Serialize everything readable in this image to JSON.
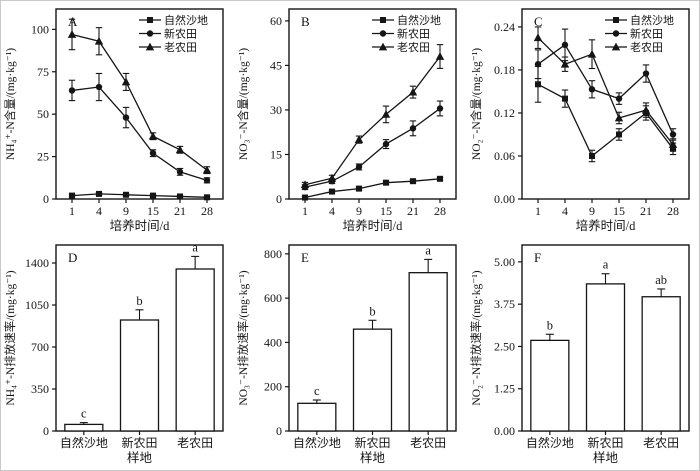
{
  "colors": {
    "ink": "#151515",
    "background": "#ffffff",
    "bar_fill": "#ffffff"
  },
  "figure_title": "",
  "chart_data": [
    {
      "type": "line",
      "panel_label": "A",
      "xlabel": "培养时间/d",
      "ylabel": "NH₄⁺-N含量/(mg·kg⁻¹)",
      "categories": [
        "1",
        "4",
        "9",
        "15",
        "21",
        "28"
      ],
      "ylim": [
        0,
        112
      ],
      "yticks": [
        0,
        25,
        50,
        75,
        100
      ],
      "ytick_labels": [
        "0",
        "25",
        "50",
        "75",
        "100"
      ],
      "legend_position": "top-right",
      "grid": false,
      "series": [
        {
          "name": "自然沙地",
          "marker": "square",
          "values": [
            2,
            3,
            2.5,
            2,
            1.5,
            1
          ],
          "errors": [
            0.8,
            0.8,
            0.8,
            0.8,
            0.5,
            0.5
          ]
        },
        {
          "name": "新农田",
          "marker": "circle",
          "values": [
            64,
            66,
            48,
            27,
            16,
            11
          ],
          "errors": [
            6,
            8,
            6,
            2,
            2,
            1.5
          ]
        },
        {
          "name": "老农田",
          "marker": "triangle",
          "values": [
            97,
            93,
            69,
            37,
            29,
            17
          ],
          "errors": [
            9,
            8,
            5,
            2,
            2,
            2
          ]
        }
      ]
    },
    {
      "type": "line",
      "panel_label": "B",
      "xlabel": "培养时间/d",
      "ylabel": "NO₃⁻-N含量/(mg·kg⁻¹)",
      "categories": [
        "1",
        "4",
        "9",
        "15",
        "21",
        "28"
      ],
      "ylim": [
        0,
        64
      ],
      "yticks": [
        0,
        15,
        30,
        45,
        60
      ],
      "ytick_labels": [
        "0",
        "15",
        "30",
        "45",
        "60"
      ],
      "legend_position": "top-right",
      "grid": false,
      "series": [
        {
          "name": "自然沙地",
          "marker": "square",
          "values": [
            0.5,
            2.5,
            3.5,
            5.5,
            6,
            6.8
          ],
          "errors": [
            0.3,
            0.4,
            0.5,
            0.6,
            0.5,
            0.5
          ]
        },
        {
          "name": "新农田",
          "marker": "circle",
          "values": [
            4,
            6,
            10.8,
            18.5,
            23.8,
            30.5
          ],
          "errors": [
            0.8,
            0.8,
            1,
            1.5,
            2.5,
            2.5
          ]
        },
        {
          "name": "老农田",
          "marker": "triangle",
          "values": [
            4.8,
            7,
            20,
            28.5,
            36,
            48
          ],
          "errors": [
            0.8,
            1,
            1.2,
            2.8,
            2,
            4
          ]
        }
      ]
    },
    {
      "type": "line",
      "panel_label": "C",
      "xlabel": "培养时间/d",
      "ylabel": "NO₂⁻-N含量/(mg·kg⁻¹)",
      "categories": [
        "1",
        "4",
        "9",
        "15",
        "21",
        "28"
      ],
      "ylim": [
        0,
        0.265
      ],
      "yticks": [
        0,
        0.06,
        0.12,
        0.18,
        0.24
      ],
      "ytick_labels": [
        "0.00",
        "0.06",
        "0.12",
        "0.18",
        "0.24"
      ],
      "legend_position": "top-right",
      "grid": false,
      "series": [
        {
          "name": "自然沙地",
          "marker": "square",
          "values": [
            0.16,
            0.14,
            0.06,
            0.09,
            0.12,
            0.07
          ],
          "errors": [
            0.025,
            0.012,
            0.008,
            0.008,
            0.01,
            0.008
          ]
        },
        {
          "name": "新农田",
          "marker": "circle",
          "values": [
            0.188,
            0.215,
            0.153,
            0.14,
            0.175,
            0.09
          ],
          "errors": [
            0.02,
            0.022,
            0.012,
            0.008,
            0.012,
            0.008
          ]
        },
        {
          "name": "老农田",
          "marker": "triangle",
          "values": [
            0.225,
            0.188,
            0.202,
            0.113,
            0.124,
            0.076
          ],
          "errors": [
            0.015,
            0.01,
            0.02,
            0.008,
            0.01,
            0.008
          ]
        }
      ]
    },
    {
      "type": "bar",
      "panel_label": "D",
      "xlabel": "样地",
      "ylabel": "NH₄⁺-N排放速率/(mg·kg⁻¹)",
      "categories": [
        "自然沙地",
        "新农田",
        "老农田"
      ],
      "values": [
        55,
        925,
        1350
      ],
      "errors": [
        15,
        85,
        105
      ],
      "letters": [
        "c",
        "b",
        "a"
      ],
      "ylim": [
        0,
        1550
      ],
      "yticks": [
        0,
        350,
        700,
        1050,
        1400
      ],
      "ytick_labels": [
        "0",
        "350",
        "700",
        "1050",
        "1400"
      ],
      "grid": false
    },
    {
      "type": "bar",
      "panel_label": "E",
      "xlabel": "样地",
      "ylabel": "NO₃⁻-N排放速率/(mg·kg⁻¹)",
      "categories": [
        "自然沙地",
        "新农田",
        "老农田"
      ],
      "values": [
        125,
        460,
        715
      ],
      "errors": [
        15,
        40,
        60
      ],
      "letters": [
        "c",
        "b",
        "a"
      ],
      "ylim": [
        0,
        840
      ],
      "yticks": [
        0,
        200,
        400,
        600,
        800
      ],
      "ytick_labels": [
        "0",
        "200",
        "400",
        "600",
        "800"
      ],
      "grid": false
    },
    {
      "type": "bar",
      "panel_label": "F",
      "xlabel": "样地",
      "ylabel": "NO₂⁻-N排放速率/(mg·kg⁻¹)",
      "categories": [
        "自然沙地",
        "新农田",
        "老农田"
      ],
      "values": [
        2.68,
        4.35,
        3.97
      ],
      "errors": [
        0.18,
        0.3,
        0.23
      ],
      "letters": [
        "b",
        "a",
        "ab"
      ],
      "ylim": [
        0,
        5.5
      ],
      "yticks": [
        0,
        1.25,
        2.5,
        3.75,
        5
      ],
      "ytick_labels": [
        "0.00",
        "1.25",
        "2.50",
        "3.75",
        "5.00"
      ],
      "grid": false
    }
  ]
}
